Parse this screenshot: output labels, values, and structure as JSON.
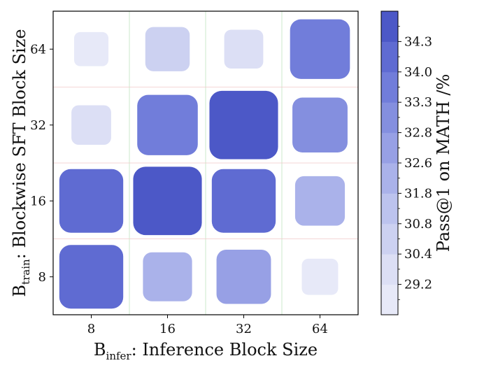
{
  "chart_data": {
    "type": "heatmap",
    "x_categories": [
      "8",
      "16",
      "32",
      "64"
    ],
    "y_categories": [
      "8",
      "16",
      "32",
      "64"
    ],
    "xlabel": {
      "main": "B",
      "sub": "infer",
      "rest": ": Inference Block Size"
    },
    "ylabel": {
      "main": "B",
      "sub": "train",
      "rest": ": Blockwise SFT Block Size"
    },
    "values": [
      [
        33.6,
        31.4,
        32.2,
        29.5
      ],
      [
        33.6,
        34.3,
        33.6,
        31.5
      ],
      [
        30.0,
        33.1,
        34.3,
        32.3
      ],
      [
        29.2,
        30.7,
        29.9,
        33.0
      ]
    ],
    "colorbar": {
      "label": "Pass@1 on MATH /%",
      "ticks": [
        "29.2",
        "30.4",
        "30.8",
        "31.8",
        "32.6",
        "32.8",
        "33.3",
        "34.0",
        "34.3"
      ],
      "colors": [
        "#e7e9f8",
        "#dcdff5",
        "#ccd1f1",
        "#bcc3ee",
        "#aab2ea",
        "#97a0e5",
        "#848fdf",
        "#717dda",
        "#5f6bd2",
        "#4c58c7"
      ]
    },
    "grid": true,
    "colors": {
      "vgrid": "#bfe3bf",
      "hgrid": "#f0c8c8",
      "frame": "#000000"
    }
  }
}
